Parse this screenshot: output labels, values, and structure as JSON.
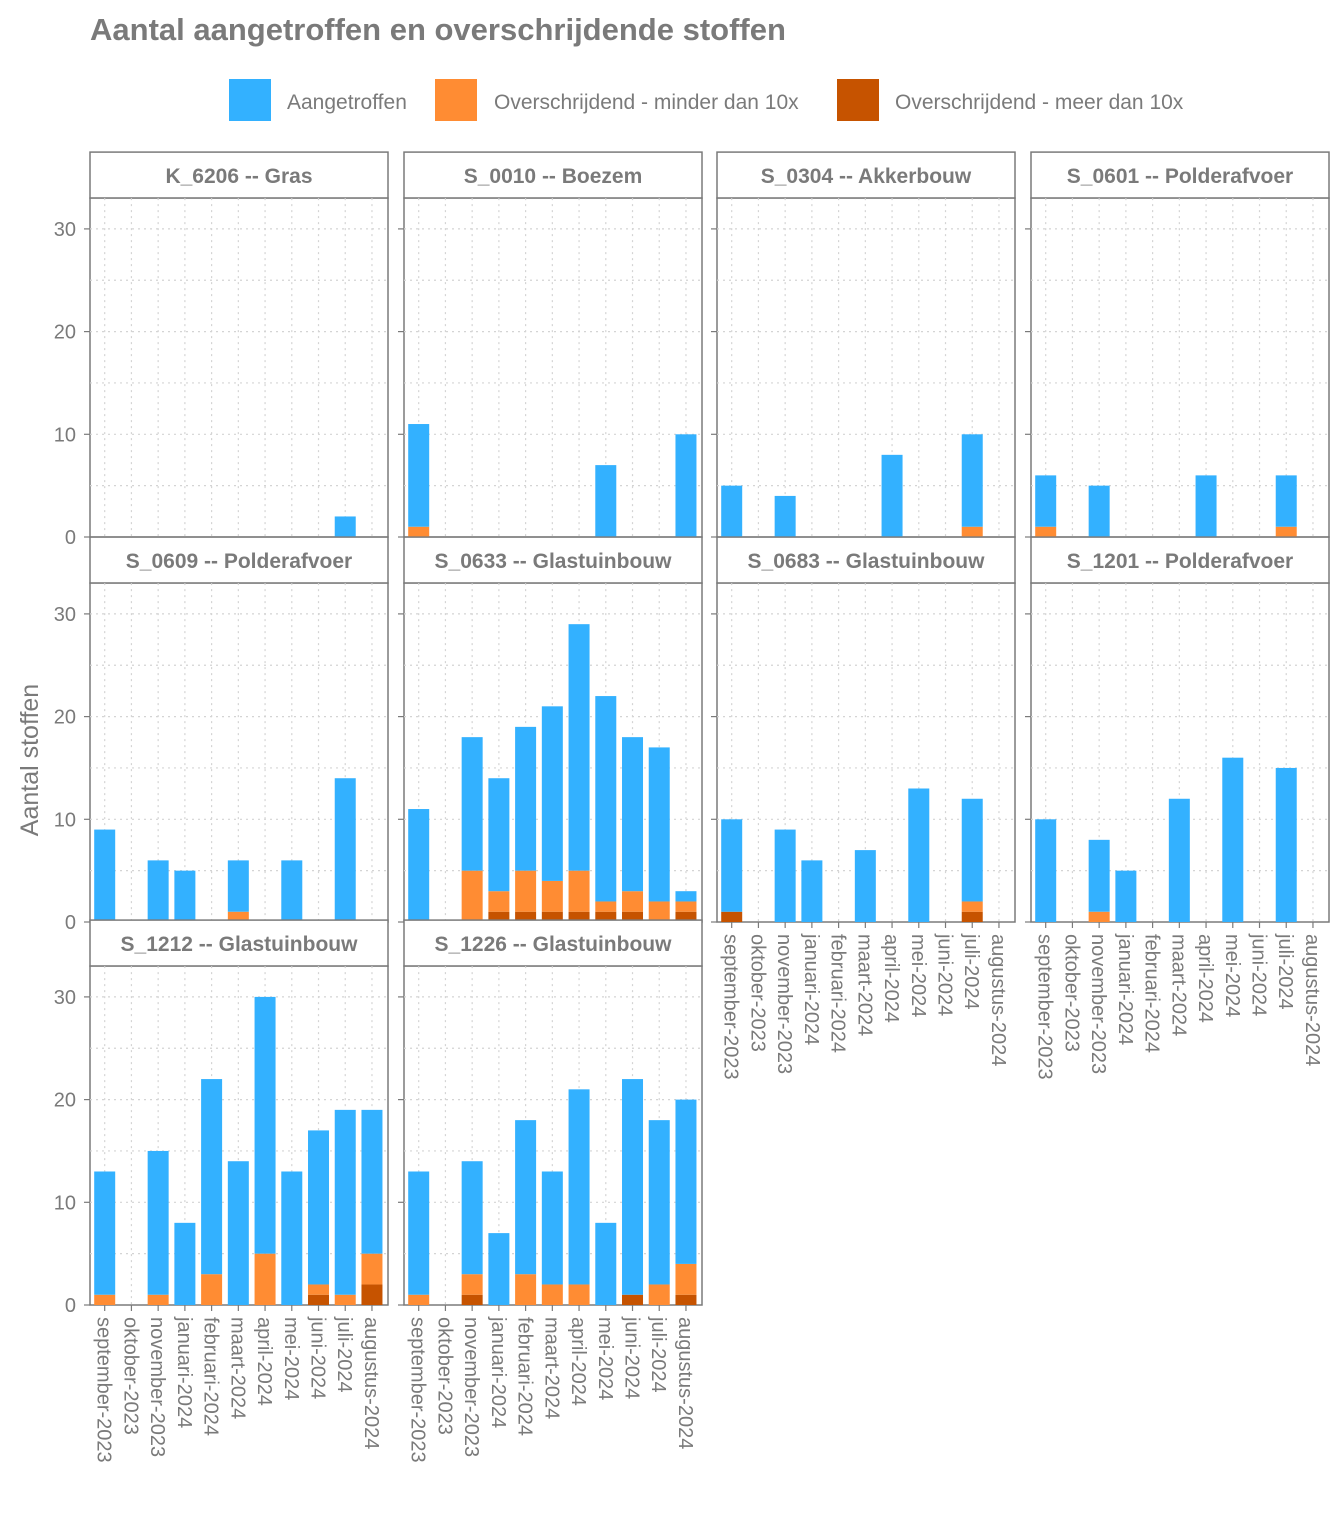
{
  "chart_data": {
    "type": "bar",
    "stacked": true,
    "title": "Aantal aangetroffen en overschrijdende stoffen",
    "ylabel": "Aantal stoffen",
    "xlabel": "",
    "ylim": [
      0,
      30
    ],
    "yticks": [
      0,
      10,
      20,
      30
    ],
    "grid": true,
    "legend_position": "top",
    "legend": [
      {
        "key": "aangetroffen",
        "label": "Aangetroffen",
        "color": "#33b1ff"
      },
      {
        "key": "minder",
        "label": "Overschrijdend - minder dan 10x",
        "color": "#ff8c33"
      },
      {
        "key": "meer",
        "label": "Overschrijdend - meer dan 10x",
        "color": "#c65300"
      }
    ],
    "months": [
      "september-2023",
      "oktober-2023",
      "november-2023",
      "januari-2024",
      "februari-2024",
      "maart-2024",
      "april-2024",
      "mei-2024",
      "juni-2024",
      "juli-2024",
      "augustus-2024"
    ],
    "panels": [
      {
        "title": "K_6206 -- Gras",
        "bars": [
          {
            "month": "juli-2024",
            "total": 2,
            "minder": 0,
            "meer": 0
          }
        ]
      },
      {
        "title": "S_0010 -- Boezem",
        "bars": [
          {
            "month": "september-2023",
            "total": 11,
            "minder": 1,
            "meer": 0
          },
          {
            "month": "mei-2024",
            "total": 7,
            "minder": 0,
            "meer": 0
          },
          {
            "month": "augustus-2024",
            "total": 10,
            "minder": 0,
            "meer": 0
          }
        ]
      },
      {
        "title": "S_0304 -- Akkerbouw",
        "bars": [
          {
            "month": "september-2023",
            "total": 5,
            "minder": 0,
            "meer": 0
          },
          {
            "month": "november-2023",
            "total": 4,
            "minder": 0,
            "meer": 0
          },
          {
            "month": "april-2024",
            "total": 8,
            "minder": 0,
            "meer": 0
          },
          {
            "month": "juli-2024",
            "total": 10,
            "minder": 1,
            "meer": 0
          }
        ]
      },
      {
        "title": "S_0601 -- Polderafvoer",
        "bars": [
          {
            "month": "september-2023",
            "total": 6,
            "minder": 1,
            "meer": 0
          },
          {
            "month": "november-2023",
            "total": 5,
            "minder": 0,
            "meer": 0
          },
          {
            "month": "april-2024",
            "total": 6,
            "minder": 0,
            "meer": 0
          },
          {
            "month": "juli-2024",
            "total": 6,
            "minder": 1,
            "meer": 0
          }
        ]
      },
      {
        "title": "S_0609 -- Polderafvoer",
        "bars": [
          {
            "month": "september-2023",
            "total": 9,
            "minder": 0,
            "meer": 0
          },
          {
            "month": "november-2023",
            "total": 6,
            "minder": 0,
            "meer": 0
          },
          {
            "month": "januari-2024",
            "total": 5,
            "minder": 0,
            "meer": 0
          },
          {
            "month": "maart-2024",
            "total": 6,
            "minder": 1,
            "meer": 0
          },
          {
            "month": "mei-2024",
            "total": 6,
            "minder": 0,
            "meer": 0
          },
          {
            "month": "juli-2024",
            "total": 14,
            "minder": 0,
            "meer": 0
          }
        ]
      },
      {
        "title": "S_0633 -- Glastuinbouw",
        "bars": [
          {
            "month": "september-2023",
            "total": 11,
            "minder": 0,
            "meer": 0
          },
          {
            "month": "november-2023",
            "total": 18,
            "minder": 5,
            "meer": 0
          },
          {
            "month": "januari-2024",
            "total": 14,
            "minder": 2,
            "meer": 1
          },
          {
            "month": "februari-2024",
            "total": 19,
            "minder": 4,
            "meer": 1
          },
          {
            "month": "maart-2024",
            "total": 21,
            "minder": 3,
            "meer": 1
          },
          {
            "month": "april-2024",
            "total": 29,
            "minder": 4,
            "meer": 1
          },
          {
            "month": "mei-2024",
            "total": 22,
            "minder": 1,
            "meer": 1
          },
          {
            "month": "juni-2024",
            "total": 18,
            "minder": 2,
            "meer": 1
          },
          {
            "month": "juli-2024",
            "total": 17,
            "minder": 2,
            "meer": 0
          },
          {
            "month": "augustus-2024",
            "total": 3,
            "minder": 1,
            "meer": 1
          }
        ]
      },
      {
        "title": "S_0683 -- Glastuinbouw",
        "bars": [
          {
            "month": "september-2023",
            "total": 10,
            "minder": 0,
            "meer": 1
          },
          {
            "month": "november-2023",
            "total": 9,
            "minder": 0,
            "meer": 0
          },
          {
            "month": "januari-2024",
            "total": 6,
            "minder": 0,
            "meer": 0
          },
          {
            "month": "maart-2024",
            "total": 7,
            "minder": 0,
            "meer": 0
          },
          {
            "month": "mei-2024",
            "total": 13,
            "minder": 0,
            "meer": 0
          },
          {
            "month": "juli-2024",
            "total": 12,
            "minder": 1,
            "meer": 1
          }
        ]
      },
      {
        "title": "S_1201 -- Polderafvoer",
        "bars": [
          {
            "month": "september-2023",
            "total": 10,
            "minder": 0,
            "meer": 0
          },
          {
            "month": "november-2023",
            "total": 8,
            "minder": 1,
            "meer": 0
          },
          {
            "month": "januari-2024",
            "total": 5,
            "minder": 0,
            "meer": 0
          },
          {
            "month": "maart-2024",
            "total": 12,
            "minder": 0,
            "meer": 0
          },
          {
            "month": "mei-2024",
            "total": 16,
            "minder": 0,
            "meer": 0
          },
          {
            "month": "juli-2024",
            "total": 15,
            "minder": 0,
            "meer": 0
          }
        ]
      },
      {
        "title": "S_1212 -- Glastuinbouw",
        "bars": [
          {
            "month": "september-2023",
            "total": 13,
            "minder": 1,
            "meer": 0
          },
          {
            "month": "november-2023",
            "total": 15,
            "minder": 1,
            "meer": 0
          },
          {
            "month": "januari-2024",
            "total": 8,
            "minder": 0,
            "meer": 0
          },
          {
            "month": "februari-2024",
            "total": 22,
            "minder": 3,
            "meer": 0
          },
          {
            "month": "maart-2024",
            "total": 14,
            "minder": 0,
            "meer": 0
          },
          {
            "month": "april-2024",
            "total": 30,
            "minder": 5,
            "meer": 0
          },
          {
            "month": "mei-2024",
            "total": 13,
            "minder": 0,
            "meer": 0
          },
          {
            "month": "juni-2024",
            "total": 17,
            "minder": 1,
            "meer": 1
          },
          {
            "month": "juli-2024",
            "total": 19,
            "minder": 1,
            "meer": 0
          },
          {
            "month": "augustus-2024",
            "total": 19,
            "minder": 3,
            "meer": 2
          }
        ]
      },
      {
        "title": "S_1226 -- Glastuinbouw",
        "bars": [
          {
            "month": "september-2023",
            "total": 13,
            "minder": 1,
            "meer": 0
          },
          {
            "month": "november-2023",
            "total": 14,
            "minder": 2,
            "meer": 1
          },
          {
            "month": "januari-2024",
            "total": 7,
            "minder": 0,
            "meer": 0
          },
          {
            "month": "februari-2024",
            "total": 18,
            "minder": 3,
            "meer": 0
          },
          {
            "month": "maart-2024",
            "total": 13,
            "minder": 2,
            "meer": 0
          },
          {
            "month": "april-2024",
            "total": 21,
            "minder": 2,
            "meer": 0
          },
          {
            "month": "mei-2024",
            "total": 8,
            "minder": 0,
            "meer": 0
          },
          {
            "month": "juni-2024",
            "total": 22,
            "minder": 0,
            "meer": 1
          },
          {
            "month": "juli-2024",
            "total": 18,
            "minder": 2,
            "meer": 0
          },
          {
            "month": "augustus-2024",
            "total": 20,
            "minder": 3,
            "meer": 1
          }
        ]
      }
    ]
  }
}
